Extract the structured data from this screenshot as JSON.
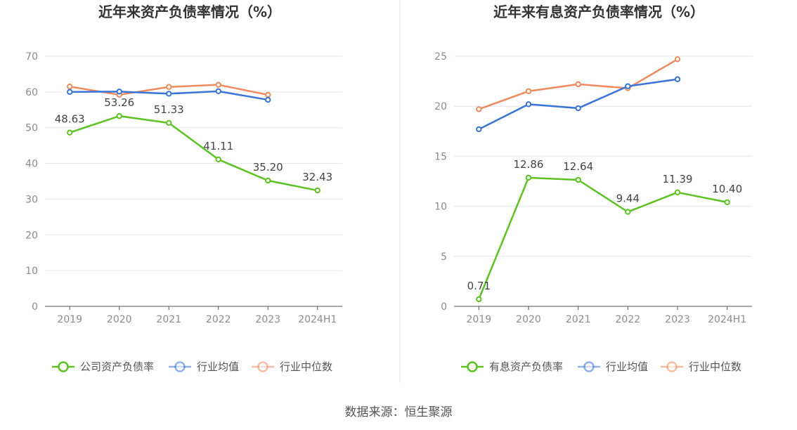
{
  "source": "数据来源：恒生聚源",
  "colors": {
    "company": "#5cc323",
    "avg": "#3a74d9",
    "median": "#f08a5d"
  },
  "chart_data": [
    {
      "type": "line",
      "title": "近年来资产负债率情况（%）",
      "categories": [
        "2019",
        "2020",
        "2021",
        "2022",
        "2023",
        "2024H1"
      ],
      "ylim": [
        0,
        70
      ],
      "yticks": [
        0,
        10,
        20,
        30,
        40,
        50,
        60,
        70
      ],
      "grid": true,
      "legend_position": "bottom",
      "series": [
        {
          "name": "公司资产负债率",
          "key": "company",
          "values": [
            48.63,
            53.26,
            51.33,
            41.11,
            35.2,
            32.43
          ],
          "labels": [
            "48.63",
            "53.26",
            "51.33",
            "41.11",
            "35.20",
            "32.43"
          ]
        },
        {
          "name": "行业均值",
          "key": "avg",
          "values": [
            60.0,
            60.1,
            59.5,
            60.2,
            57.8,
            null
          ]
        },
        {
          "name": "行业中位数",
          "key": "median",
          "values": [
            61.5,
            59.2,
            61.4,
            62.0,
            59.2,
            null
          ]
        }
      ]
    },
    {
      "type": "line",
      "title": "近年来有息资产负债率情况（%）",
      "categories": [
        "2019",
        "2020",
        "2021",
        "2022",
        "2023",
        "2024H1"
      ],
      "ylim": [
        0,
        25
      ],
      "yticks": [
        0,
        5,
        10,
        15,
        20,
        25
      ],
      "grid": true,
      "legend_position": "bottom",
      "series": [
        {
          "name": "有息资产负债率",
          "key": "company",
          "values": [
            0.71,
            12.86,
            12.64,
            9.44,
            11.39,
            10.4
          ],
          "labels": [
            "0.71",
            "12.86",
            "12.64",
            "9.44",
            "11.39",
            "10.40"
          ]
        },
        {
          "name": "行业均值",
          "key": "avg",
          "values": [
            17.7,
            20.2,
            19.8,
            22.0,
            22.7,
            null
          ]
        },
        {
          "name": "行业中位数",
          "key": "median",
          "values": [
            19.7,
            21.5,
            22.2,
            21.8,
            24.7,
            null
          ]
        }
      ]
    }
  ]
}
